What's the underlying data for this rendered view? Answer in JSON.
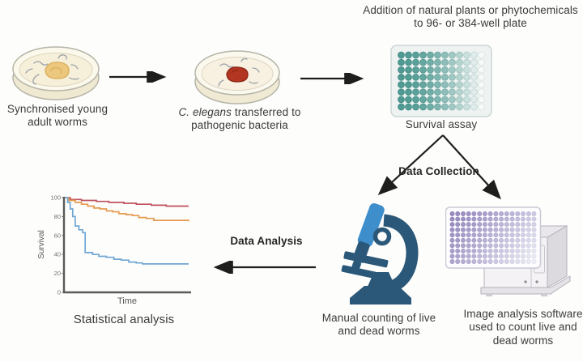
{
  "palette": {
    "arrow": "#1e1e1c",
    "text": "#3b3b39",
    "dish_fill": "#f6efd9",
    "dish_rim": "#fbf8ec",
    "lawn_yellow": "#ecc87e",
    "lawn_red": "#b23621",
    "worm": "#9aa2a7",
    "microscope_dark": "#2b5878",
    "microscope_light": "#3e8ecb",
    "machine_body": "#f4f2f5",
    "curve_red": "#c0505e",
    "curve_orange": "#e69a4e",
    "curve_blue": "#6fa6d3"
  },
  "nodes": {
    "dish_worms": {
      "label": "Synchronised young adult worms"
    },
    "dish_pathogen": {
      "label_italic": "C. elegans",
      "label_rest": "transferred to pathogenic bacteria"
    },
    "well_plate": {
      "title": "Addition of natural plants or phytochemicals to 96- or 384-well plate",
      "caption": "Survival assay"
    },
    "microscope": {
      "caption": "Manual counting of live and dead worms"
    },
    "imager": {
      "caption": "Image analysis software used to count live and dead worms"
    },
    "chart": {
      "caption": "Statistical analysis"
    }
  },
  "edges": {
    "data_collection_label": "Data Collection",
    "data_analysis_label": "Data Analysis"
  },
  "plates": {
    "assay_plate": {
      "cols": 12,
      "rows": 8,
      "start_color": "#4f9a93",
      "end_color": "#f7faf9",
      "ring_start": "#3f8a82",
      "ring_end": "#d9e5e3"
    },
    "imaging_plate": {
      "cols": 16,
      "rows": 10,
      "start_color": "#9a8cc0",
      "end_color": "#eef0f6",
      "ring_start": "#8b7db4",
      "ring_end": "#dfe1ec"
    }
  },
  "chart_data": {
    "type": "line",
    "subtype": "kaplan-meier-step",
    "title": "",
    "xlabel": "Time",
    "ylabel": "Survival",
    "xlim": [
      0,
      100
    ],
    "ylim": [
      0,
      100
    ],
    "yticks": [
      0,
      20,
      40,
      60,
      80,
      100
    ],
    "grid": false,
    "legend": "none",
    "series": [
      {
        "name": "red-high-survival",
        "color": "#c0505e",
        "points": [
          [
            0,
            100
          ],
          [
            5,
            98
          ],
          [
            14,
            97
          ],
          [
            26,
            96
          ],
          [
            36,
            95
          ],
          [
            48,
            94
          ],
          [
            58,
            93
          ],
          [
            70,
            92
          ],
          [
            82,
            91
          ],
          [
            100,
            91
          ]
        ]
      },
      {
        "name": "orange-mid-survival",
        "color": "#e69a4e",
        "points": [
          [
            0,
            100
          ],
          [
            4,
            97
          ],
          [
            9,
            95
          ],
          [
            14,
            93
          ],
          [
            19,
            91
          ],
          [
            24,
            89
          ],
          [
            29,
            88
          ],
          [
            34,
            86
          ],
          [
            39,
            85
          ],
          [
            44,
            83
          ],
          [
            50,
            82
          ],
          [
            55,
            81
          ],
          [
            60,
            79
          ],
          [
            66,
            78
          ],
          [
            72,
            76
          ],
          [
            100,
            75
          ]
        ]
      },
      {
        "name": "blue-low-survival",
        "color": "#6fa6d3",
        "points": [
          [
            0,
            100
          ],
          [
            3,
            95
          ],
          [
            5,
            88
          ],
          [
            7,
            80
          ],
          [
            9,
            70
          ],
          [
            12,
            66
          ],
          [
            15,
            63
          ],
          [
            17,
            42
          ],
          [
            23,
            40
          ],
          [
            28,
            38
          ],
          [
            34,
            37
          ],
          [
            40,
            35
          ],
          [
            46,
            34
          ],
          [
            52,
            32
          ],
          [
            58,
            31
          ],
          [
            63,
            30
          ],
          [
            100,
            30
          ]
        ]
      }
    ]
  }
}
